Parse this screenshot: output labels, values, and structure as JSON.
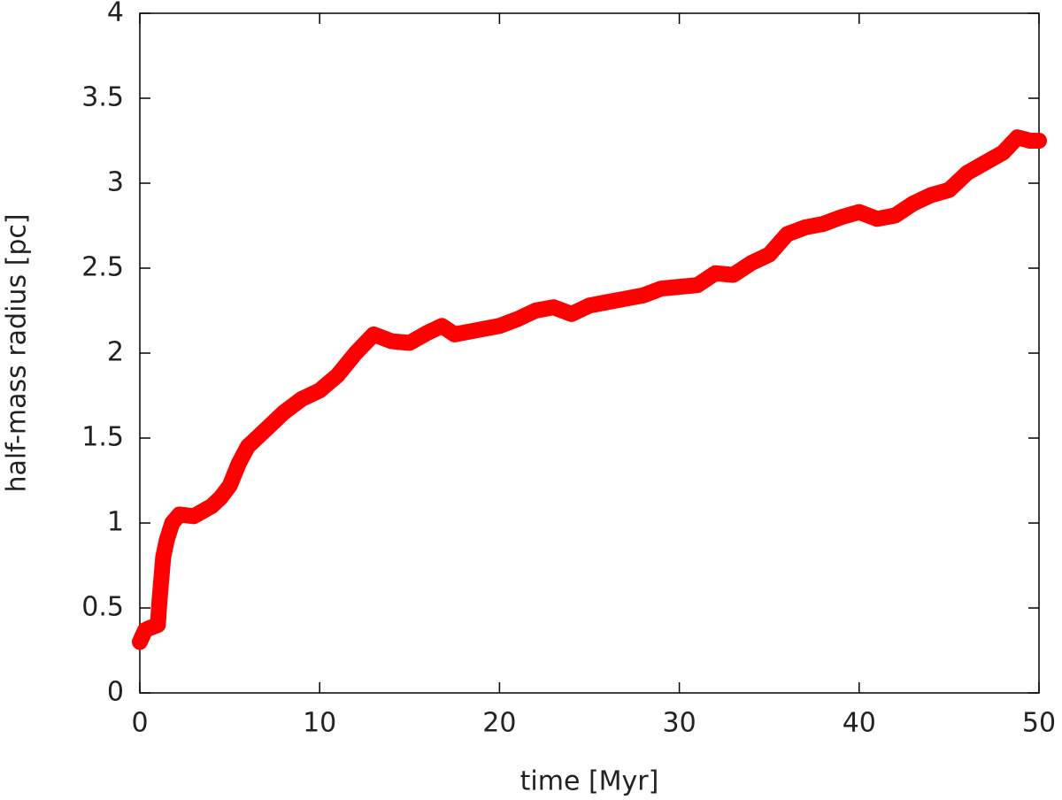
{
  "chart_data": {
    "type": "line",
    "xlabel": "time [Myr]",
    "ylabel": "half-mass radius [pc]",
    "xlim": [
      0,
      50
    ],
    "xticks": [
      0,
      10,
      20,
      30,
      40,
      50
    ],
    "ylim": [
      0,
      4
    ],
    "yticks": [
      0,
      0.5,
      1,
      1.5,
      2,
      2.5,
      3,
      3.5,
      4
    ],
    "grid": false,
    "series": [
      {
        "color": "#ff0000",
        "x": [
          0,
          0.3,
          0.5,
          1.0,
          1.1,
          1.3,
          1.5,
          1.8,
          2.2,
          3.0,
          4.0,
          4.5,
          5.0,
          5.5,
          6.0,
          7.0,
          8.0,
          9.0,
          10.0,
          11.0,
          12.0,
          13.0,
          14.0,
          15.0,
          16.0,
          16.8,
          17.5,
          18.5,
          20.0,
          21.0,
          22.0,
          23.0,
          24.0,
          25.0,
          26.0,
          27.0,
          28.0,
          29.0,
          30.0,
          31.0,
          32.0,
          33.0,
          34.0,
          35.0,
          36.0,
          37.0,
          38.0,
          39.0,
          40.0,
          41.0,
          42.0,
          43.0,
          44.0,
          45.0,
          46.0,
          47.0,
          48.0,
          48.8,
          49.5,
          50.0
        ],
        "values": [
          0.3,
          0.37,
          0.38,
          0.4,
          0.55,
          0.8,
          0.9,
          1.0,
          1.05,
          1.04,
          1.1,
          1.15,
          1.22,
          1.35,
          1.45,
          1.55,
          1.65,
          1.73,
          1.78,
          1.87,
          2.0,
          2.11,
          2.07,
          2.06,
          2.12,
          2.16,
          2.11,
          2.13,
          2.16,
          2.2,
          2.25,
          2.27,
          2.23,
          2.28,
          2.3,
          2.32,
          2.34,
          2.38,
          2.39,
          2.4,
          2.47,
          2.46,
          2.53,
          2.58,
          2.7,
          2.74,
          2.76,
          2.8,
          2.83,
          2.79,
          2.81,
          2.88,
          2.93,
          2.96,
          3.06,
          3.12,
          3.18,
          3.27,
          3.25,
          3.25
        ]
      }
    ]
  }
}
